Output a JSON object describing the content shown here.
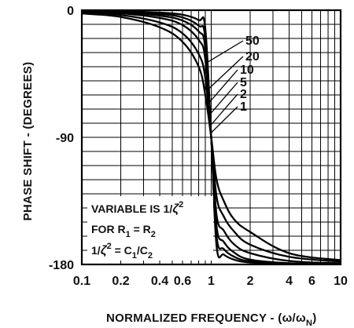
{
  "chart_data": {
    "type": "line",
    "xscale": "log",
    "xlim": [
      0.1,
      10
    ],
    "ylim": [
      -180,
      0
    ],
    "grid": true,
    "xlabel": "NORMALIZED FREQUENCY - (ω/ω",
    "xlabel_sub": "N",
    "xlabel_end": ")",
    "ylabel": "PHASE SHIFT - (DEGREES)",
    "x_ticks": [
      0.1,
      0.2,
      0.4,
      0.6,
      1,
      2,
      4,
      6,
      10
    ],
    "x_tick_labels": [
      "0.1",
      "0.2",
      "0.4",
      "0.6",
      "1",
      "2",
      "4",
      "6",
      "10"
    ],
    "y_ticks": [
      0,
      -90,
      -180
    ],
    "y_tick_labels": [
      "0",
      "-90",
      "-180"
    ],
    "annotation_lines": [
      {
        "text": "VARIABLE IS 1/",
        "zeta": "ζ",
        "sup": "2"
      },
      {
        "text": "FOR R",
        "sub1": "1",
        "mid": " = R",
        "sub2": "2"
      },
      {
        "text": "1/",
        "zeta": "ζ",
        "sup": "2",
        "rest": " = C",
        "sub1": "1",
        "mid": "/C",
        "sub2": "2"
      }
    ],
    "series": [
      {
        "name": "50",
        "x": [
          0.1,
          0.2,
          0.4,
          0.6,
          0.8,
          0.9,
          1,
          1.1,
          1.25,
          1.5,
          2,
          4,
          10
        ],
        "y": [
          -0.3,
          -0.7,
          -1.7,
          -3.2,
          -7,
          -13,
          -90,
          -167,
          -173,
          -176.6,
          -178.6,
          -179.7,
          -179.9
        ]
      },
      {
        "name": "20",
        "x": [
          0.1,
          0.2,
          0.4,
          0.6,
          0.8,
          0.9,
          1,
          1.1,
          1.25,
          1.5,
          2,
          4,
          10
        ],
        "y": [
          -0.5,
          -1.1,
          -2.7,
          -5.1,
          -11,
          -20,
          -90,
          -160,
          -169,
          -174.5,
          -177.8,
          -179.5,
          -179.8
        ]
      },
      {
        "name": "10",
        "x": [
          0.1,
          0.2,
          0.4,
          0.6,
          0.8,
          0.9,
          1,
          1.1,
          1.25,
          1.5,
          2,
          4,
          10
        ],
        "y": [
          -0.7,
          -1.5,
          -3.9,
          -7.3,
          -15,
          -27,
          -90,
          -153,
          -164,
          -171.5,
          -176.6,
          -179.1,
          -179.7
        ]
      },
      {
        "name": "5",
        "x": [
          0.1,
          0.2,
          0.4,
          0.6,
          0.8,
          0.9,
          1,
          1.1,
          1.25,
          1.5,
          2,
          4,
          10
        ],
        "y": [
          -1.0,
          -2.2,
          -5.5,
          -10.5,
          -21,
          -35,
          -90,
          -145,
          -156,
          -165.7,
          -172,
          -177.5,
          -179.2
        ]
      },
      {
        "name": "2",
        "x": [
          0.1,
          0.2,
          0.4,
          0.6,
          0.8,
          0.9,
          1,
          1.1,
          1.25,
          1.5,
          2,
          4,
          10
        ],
        "y": [
          -1.6,
          -3.4,
          -8.7,
          -16.4,
          -31,
          -48,
          -90,
          -132,
          -146,
          -156.6,
          -166,
          -174.6,
          -178
        ]
      },
      {
        "name": "1",
        "x": [
          0.1,
          0.2,
          0.4,
          0.6,
          0.8,
          0.9,
          1,
          1.1,
          1.25,
          1.5,
          2,
          4,
          10
        ],
        "y": [
          -2.3,
          -4.8,
          -12.1,
          -22.4,
          -40,
          -60,
          -90,
          -120,
          -135,
          -148,
          -157,
          -172,
          -177
        ]
      }
    ]
  }
}
